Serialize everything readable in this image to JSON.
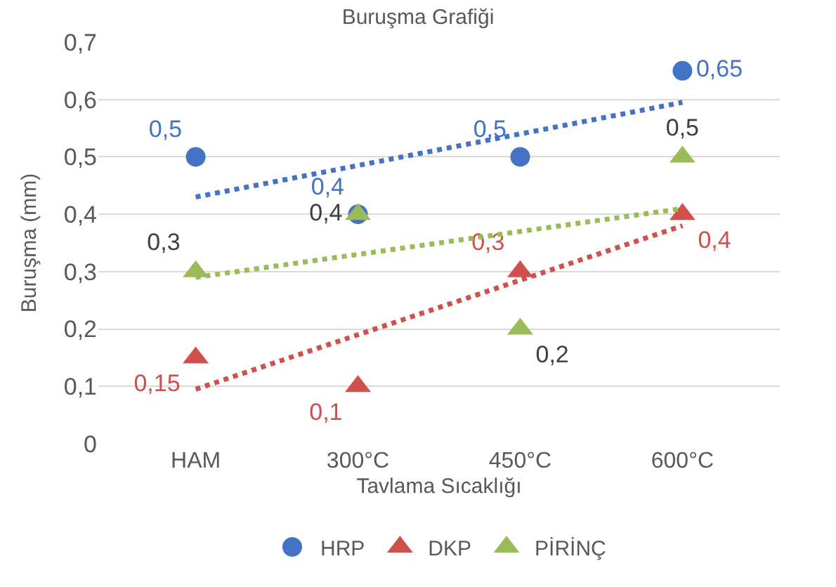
{
  "chart_data": {
    "type": "scatter",
    "title": "Buruşma Grafiği",
    "xlabel": "Tavlama Sıcaklığı",
    "ylabel": "Buruşma (mm)",
    "categories": [
      "HAM",
      "300°C",
      "450°C",
      "600°C"
    ],
    "series": [
      {
        "name": "HRP",
        "color": "#4472c4",
        "marker": "circle",
        "values": [
          0.5,
          0.4,
          0.5,
          0.65
        ],
        "value_labels": [
          "0,5",
          "0,4",
          "0,5",
          "0,65"
        ]
      },
      {
        "name": "DKP",
        "color": "#d0504d",
        "marker": "triangle",
        "values": [
          0.15,
          0.1,
          0.3,
          0.4
        ],
        "value_labels": [
          "0,15",
          "0,1",
          "0,3",
          "0,4"
        ]
      },
      {
        "name": "PİRİNÇ",
        "color": "#9bbb59",
        "marker": "triangle",
        "values": [
          0.3,
          0.4,
          0.2,
          0.5
        ],
        "value_labels": [
          "0,3",
          "0,4",
          "0,2",
          "0,5"
        ]
      },
      {
        "type": "line",
        "color": "#4472c4",
        "line_style": "dotted",
        "marker": "none",
        "values": [
          0.43,
          0.485,
          0.54,
          0.595
        ]
      },
      {
        "type": "line",
        "color": "#d0504d",
        "line_style": "dotted",
        "marker": "none",
        "values": [
          0.095,
          0.19,
          0.285,
          0.38
        ]
      },
      {
        "type": "line",
        "color": "#9bbb59",
        "line_style": "dotted",
        "marker": "none",
        "values": [
          0.29,
          0.33,
          0.37,
          0.41
        ]
      }
    ],
    "ylim": [
      0,
      0.7
    ],
    "yticks": [
      {
        "value": 0,
        "label": "0"
      },
      {
        "value": 0.1,
        "label": "0,1"
      },
      {
        "value": 0.2,
        "label": "0,2"
      },
      {
        "value": 0.3,
        "label": "0,3"
      },
      {
        "value": 0.4,
        "label": "0,4"
      },
      {
        "value": 0.5,
        "label": "0,5"
      },
      {
        "value": 0.6,
        "label": "0,6"
      },
      {
        "value": 0.7,
        "label": "0,7"
      }
    ],
    "grid": "y",
    "legend": "bottom"
  }
}
